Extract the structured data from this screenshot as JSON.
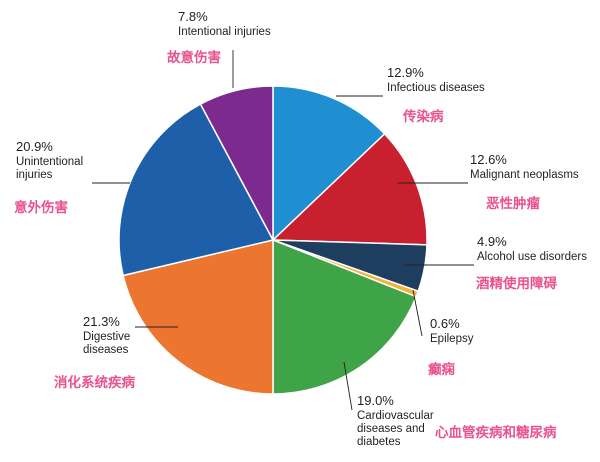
{
  "chart_data": {
    "type": "pie",
    "start_angle_deg": 0,
    "direction": "clockwise",
    "slices": [
      {
        "label_en": "Infectious diseases",
        "label_cn": "传染病",
        "value": 12.9,
        "pct_label": "12.9%",
        "color": "#1f8fd1"
      },
      {
        "label_en": "Malignant neoplasms",
        "label_cn": "恶性肿瘤",
        "value": 12.6,
        "pct_label": "12.6%",
        "color": "#c8202f"
      },
      {
        "label_en": "Alcohol use disorders",
        "label_cn": "酒精使用障碍",
        "value": 4.9,
        "pct_label": "4.9%",
        "color": "#1d3e5e"
      },
      {
        "label_en": "Epilepsy",
        "label_cn": "癫痫",
        "value": 0.6,
        "pct_label": "0.6%",
        "color": "#f2b233"
      },
      {
        "label_en": "Cardiovascular diseases and diabetes",
        "label_cn": "心血管疾病和糖尿病",
        "value": 19.0,
        "pct_label": "19.0%",
        "color": "#3fa347"
      },
      {
        "label_en": "Digestive diseases",
        "label_cn": "消化系统疾病",
        "value": 21.3,
        "pct_label": "21.3%",
        "color": "#ec7630"
      },
      {
        "label_en": "Unintentional injuries",
        "label_cn": "意外伤害",
        "value": 20.9,
        "pct_label": "20.9%",
        "color": "#1d5fa8"
      },
      {
        "label_en": "Intentional injuries",
        "label_cn": "故意伤害",
        "value": 7.8,
        "pct_label": "7.8%",
        "color": "#7c2a8e"
      }
    ],
    "cn_label_color": "#e8538f",
    "legend": "none"
  }
}
